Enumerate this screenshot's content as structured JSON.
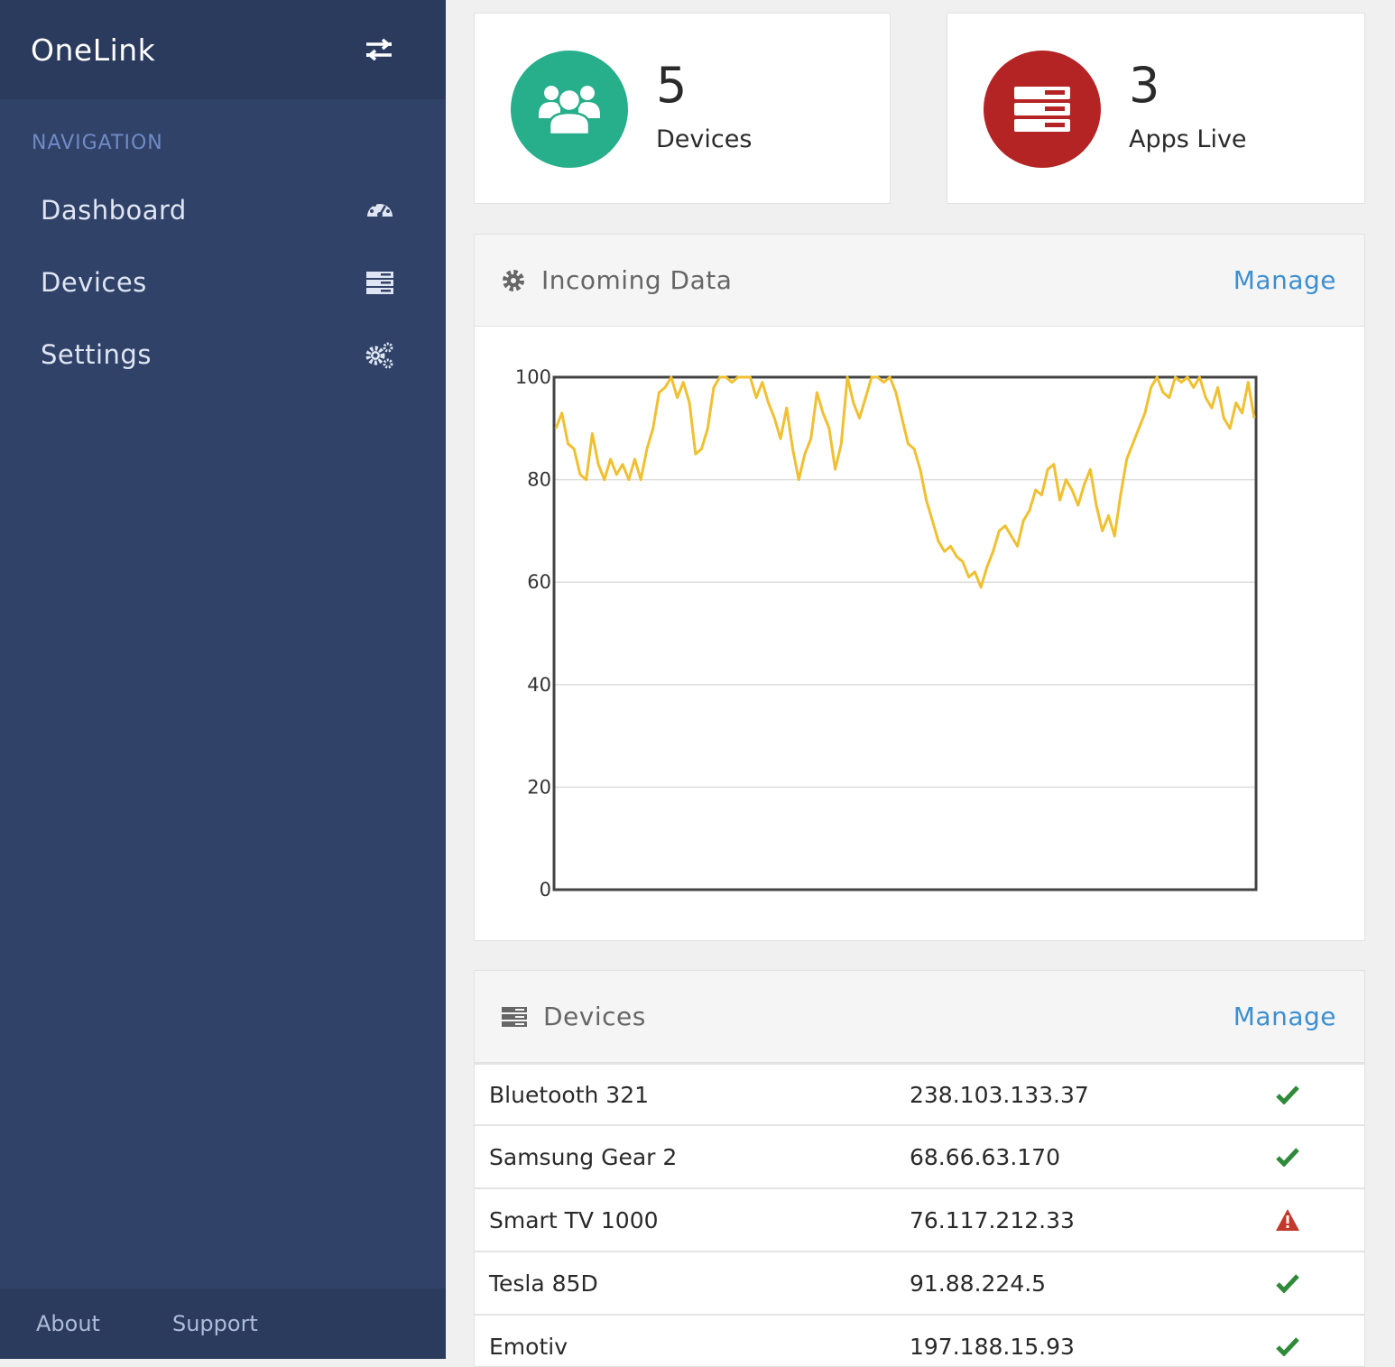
{
  "app": {
    "title": "OneLink"
  },
  "sidebar": {
    "heading": "NAVIGATION",
    "items": [
      {
        "label": "Dashboard",
        "icon": "dashboard-icon"
      },
      {
        "label": "Devices",
        "icon": "server-icon"
      },
      {
        "label": "Settings",
        "icon": "gears-icon"
      }
    ],
    "footer": {
      "about": "About",
      "support": "Support"
    }
  },
  "stats": [
    {
      "value": "5",
      "label": "Devices",
      "color": "#27ae8a",
      "icon": "users-icon"
    },
    {
      "value": "3",
      "label": "Apps Live",
      "color": "#b42424",
      "icon": "server-icon"
    }
  ],
  "incoming": {
    "title": "Incoming Data",
    "action": "Manage"
  },
  "chart_data": {
    "type": "line",
    "title": "",
    "xlabel": "",
    "ylabel": "",
    "ylim": [
      0,
      100
    ],
    "yticks": [
      0,
      20,
      40,
      60,
      80,
      100
    ],
    "grid": true,
    "line_color": "#f0c030",
    "series": [
      {
        "values": [
          90,
          93,
          87,
          86,
          81,
          80,
          89,
          83,
          80,
          84,
          81,
          83,
          80,
          84,
          80,
          86,
          90,
          97,
          98,
          100,
          96,
          99,
          95,
          85,
          86,
          90,
          98,
          100,
          100,
          99,
          100,
          100,
          100,
          96,
          99,
          95,
          92,
          88,
          94,
          86,
          80,
          85,
          88,
          97,
          93,
          90,
          82,
          87,
          100,
          95,
          92,
          96,
          100,
          100,
          99,
          100,
          97,
          92,
          87,
          86,
          82,
          76,
          72,
          68,
          66,
          67,
          65,
          64,
          61,
          62,
          59,
          63,
          66,
          70,
          71,
          69,
          67,
          72,
          74,
          78,
          77,
          82,
          83,
          76,
          80,
          78,
          75,
          79,
          82,
          75,
          70,
          73,
          69,
          77,
          84,
          87,
          90,
          93,
          98,
          100,
          97,
          96,
          100,
          99,
          100,
          98,
          100,
          96,
          94,
          98,
          92,
          90,
          95,
          93,
          99,
          92
        ]
      }
    ]
  },
  "devices": {
    "title": "Devices",
    "action": "Manage",
    "rows": [
      {
        "name": "Bluetooth 321",
        "ip": "238.103.133.37",
        "status": "ok"
      },
      {
        "name": "Samsung Gear 2",
        "ip": "68.66.63.170",
        "status": "ok"
      },
      {
        "name": "Smart TV 1000",
        "ip": "76.117.212.33",
        "status": "warning"
      },
      {
        "name": "Tesla 85D",
        "ip": "91.88.224.5",
        "status": "ok"
      },
      {
        "name": "Emotiv",
        "ip": "197.188.15.93",
        "status": "ok"
      }
    ]
  }
}
